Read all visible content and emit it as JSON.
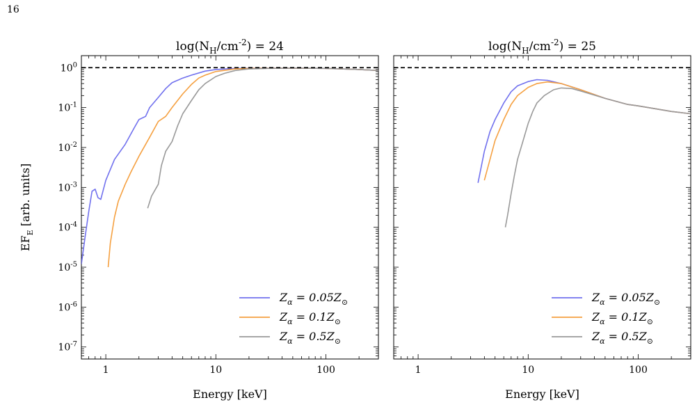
{
  "page_number": "16",
  "chart_data": [
    {
      "type": "line",
      "title": "log(N_H/cm^-2) = 24",
      "xlabel": "Energy [keV]",
      "ylabel": "EF_E [arb. units]",
      "xscale": "log",
      "yscale": "log",
      "xlim": [
        0.6,
        300
      ],
      "ylim": [
        5e-08,
        2
      ],
      "xticks": [
        {
          "value": 1,
          "label": "1"
        },
        {
          "value": 10,
          "label": "10"
        },
        {
          "value": 100,
          "label": "100"
        }
      ],
      "yticks": [
        {
          "value": 1,
          "label": "10^0"
        },
        {
          "value": 0.1,
          "label": "10^-1"
        },
        {
          "value": 0.01,
          "label": "10^-2"
        },
        {
          "value": 0.001,
          "label": "10^-3"
        },
        {
          "value": 0.0001,
          "label": "10^-4"
        },
        {
          "value": 1e-05,
          "label": "10^-5"
        },
        {
          "value": 1e-06,
          "label": "10^-6"
        },
        {
          "value": 1e-07,
          "label": "10^-7"
        }
      ],
      "reference_line": {
        "y": 1,
        "style": "dashed",
        "color": "#000000"
      },
      "legend": "bottom-right",
      "series": [
        {
          "name": "Z_α = 0.05Z_⊙",
          "color": "#7070ee",
          "points": [
            [
              0.6,
              1.2e-05
            ],
            [
              0.65,
              6e-05
            ],
            [
              0.7,
              0.00025
            ],
            [
              0.75,
              0.0008
            ],
            [
              0.8,
              0.0009
            ],
            [
              0.85,
              0.00055
            ],
            [
              0.9,
              0.0005
            ],
            [
              1,
              0.0015
            ],
            [
              1.2,
              0.005
            ],
            [
              1.5,
              0.012
            ],
            [
              1.8,
              0.03
            ],
            [
              2,
              0.05
            ],
            [
              2.3,
              0.06
            ],
            [
              2.5,
              0.1
            ],
            [
              3,
              0.18
            ],
            [
              3.5,
              0.3
            ],
            [
              4,
              0.42
            ],
            [
              5,
              0.55
            ],
            [
              6,
              0.65
            ],
            [
              8,
              0.82
            ],
            [
              10,
              0.9
            ],
            [
              15,
              0.96
            ],
            [
              20,
              0.97
            ],
            [
              30,
              0.97
            ],
            [
              50,
              0.97
            ],
            [
              100,
              0.96
            ],
            [
              200,
              0.9
            ],
            [
              300,
              0.85
            ]
          ]
        },
        {
          "name": "Z_α = 0.1Z_⊙",
          "color": "#f5a040",
          "points": [
            [
              1.05,
              1e-05
            ],
            [
              1.1,
              4e-05
            ],
            [
              1.2,
              0.00018
            ],
            [
              1.3,
              0.00045
            ],
            [
              1.5,
              0.0012
            ],
            [
              1.7,
              0.0025
            ],
            [
              2,
              0.006
            ],
            [
              2.5,
              0.018
            ],
            [
              3,
              0.045
            ],
            [
              3.5,
              0.06
            ],
            [
              4,
              0.1
            ],
            [
              5,
              0.22
            ],
            [
              6,
              0.38
            ],
            [
              7,
              0.55
            ],
            [
              8,
              0.65
            ],
            [
              10,
              0.8
            ],
            [
              15,
              0.93
            ],
            [
              20,
              0.96
            ],
            [
              30,
              0.97
            ],
            [
              50,
              0.97
            ],
            [
              100,
              0.96
            ],
            [
              200,
              0.9
            ],
            [
              300,
              0.85
            ]
          ]
        },
        {
          "name": "Z_α = 0.5Z_⊙",
          "color": "#999999",
          "points": [
            [
              2.4,
              0.0003
            ],
            [
              2.6,
              0.0006
            ],
            [
              3,
              0.0012
            ],
            [
              3.2,
              0.0035
            ],
            [
              3.5,
              0.008
            ],
            [
              4,
              0.014
            ],
            [
              4.5,
              0.035
            ],
            [
              5,
              0.07
            ],
            [
              6,
              0.15
            ],
            [
              7,
              0.28
            ],
            [
              8,
              0.4
            ],
            [
              10,
              0.6
            ],
            [
              12,
              0.72
            ],
            [
              15,
              0.85
            ],
            [
              20,
              0.93
            ],
            [
              30,
              0.96
            ],
            [
              50,
              0.97
            ],
            [
              100,
              0.96
            ],
            [
              200,
              0.9
            ],
            [
              300,
              0.85
            ]
          ]
        }
      ]
    },
    {
      "type": "line",
      "title": "log(N_H/cm^-2) = 25",
      "xlabel": "Energy [keV]",
      "ylabel": "",
      "xscale": "log",
      "yscale": "log",
      "xlim": [
        0.6,
        300
      ],
      "ylim": [
        5e-08,
        2
      ],
      "xticks": [
        {
          "value": 1,
          "label": "1"
        },
        {
          "value": 10,
          "label": "10"
        },
        {
          "value": 100,
          "label": "100"
        }
      ],
      "yticks": [],
      "reference_line": {
        "y": 1,
        "style": "dashed",
        "color": "#000000"
      },
      "legend": "bottom-right",
      "series": [
        {
          "name": "Z_α = 0.05Z_⊙",
          "color": "#7070ee",
          "points": [
            [
              3.5,
              0.0013
            ],
            [
              4,
              0.008
            ],
            [
              4.5,
              0.025
            ],
            [
              5,
              0.05
            ],
            [
              6,
              0.13
            ],
            [
              7,
              0.25
            ],
            [
              8,
              0.35
            ],
            [
              10,
              0.45
            ],
            [
              12,
              0.5
            ],
            [
              15,
              0.48
            ],
            [
              20,
              0.4
            ],
            [
              30,
              0.28
            ],
            [
              50,
              0.17
            ],
            [
              80,
              0.12
            ],
            [
              100,
              0.11
            ],
            [
              200,
              0.08
            ],
            [
              300,
              0.07
            ]
          ]
        },
        {
          "name": "Z_α = 0.1Z_⊙",
          "color": "#f5a040",
          "points": [
            [
              4,
              0.0015
            ],
            [
              4.5,
              0.005
            ],
            [
              5,
              0.015
            ],
            [
              6,
              0.05
            ],
            [
              7,
              0.12
            ],
            [
              8,
              0.2
            ],
            [
              10,
              0.32
            ],
            [
              12,
              0.4
            ],
            [
              15,
              0.44
            ],
            [
              20,
              0.4
            ],
            [
              30,
              0.28
            ],
            [
              50,
              0.17
            ],
            [
              80,
              0.12
            ],
            [
              100,
              0.11
            ],
            [
              200,
              0.08
            ],
            [
              300,
              0.07
            ]
          ]
        },
        {
          "name": "Z_α = 0.5Z_⊙",
          "color": "#999999",
          "points": [
            [
              6.2,
              0.0001
            ],
            [
              6.5,
              0.0002
            ],
            [
              7,
              0.0007
            ],
            [
              7.5,
              0.002
            ],
            [
              8,
              0.005
            ],
            [
              9,
              0.015
            ],
            [
              10,
              0.04
            ],
            [
              11,
              0.08
            ],
            [
              12,
              0.13
            ],
            [
              14,
              0.2
            ],
            [
              17,
              0.28
            ],
            [
              20,
              0.31
            ],
            [
              25,
              0.3
            ],
            [
              30,
              0.26
            ],
            [
              50,
              0.17
            ],
            [
              80,
              0.12
            ],
            [
              100,
              0.11
            ],
            [
              200,
              0.08
            ],
            [
              300,
              0.07
            ]
          ]
        }
      ]
    }
  ]
}
